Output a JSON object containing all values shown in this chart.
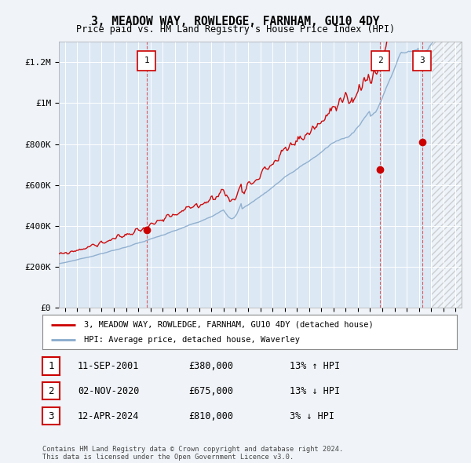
{
  "title": "3, MEADOW WAY, ROWLEDGE, FARNHAM, GU10 4DY",
  "subtitle": "Price paid vs. HM Land Registry's House Price Index (HPI)",
  "ylabel_ticks": [
    "£0",
    "£200K",
    "£400K",
    "£600K",
    "£800K",
    "£1M",
    "£1.2M"
  ],
  "ytick_values": [
    0,
    200000,
    400000,
    600000,
    800000,
    1000000,
    1200000
  ],
  "ylim": [
    0,
    1300000
  ],
  "xlim_start": 1994.5,
  "xlim_end": 2027.5,
  "legend_line1": "3, MEADOW WAY, ROWLEDGE, FARNHAM, GU10 4DY (detached house)",
  "legend_line2": "HPI: Average price, detached house, Waverley",
  "sale_color": "#cc0000",
  "hpi_color": "#88aacc",
  "purchases": [
    {
      "label": "1",
      "date_str": "11-SEP-2001",
      "price_str": "£380,000",
      "hpi_str": "13% ↑ HPI",
      "year": 2001.7,
      "price": 380000
    },
    {
      "label": "2",
      "date_str": "02-NOV-2020",
      "price_str": "£675,000",
      "hpi_str": "13% ↓ HPI",
      "year": 2020.83,
      "price": 675000
    },
    {
      "label": "3",
      "date_str": "12-APR-2024",
      "price_str": "£810,000",
      "hpi_str": "3% ↓ HPI",
      "year": 2024.28,
      "price": 810000
    }
  ],
  "footer": "Contains HM Land Registry data © Crown copyright and database right 2024.\nThis data is licensed under the Open Government Licence v3.0.",
  "background_color": "#f0f4f8",
  "plot_bg_color": "#dce8f4",
  "hatch_start_year": 2025.0
}
